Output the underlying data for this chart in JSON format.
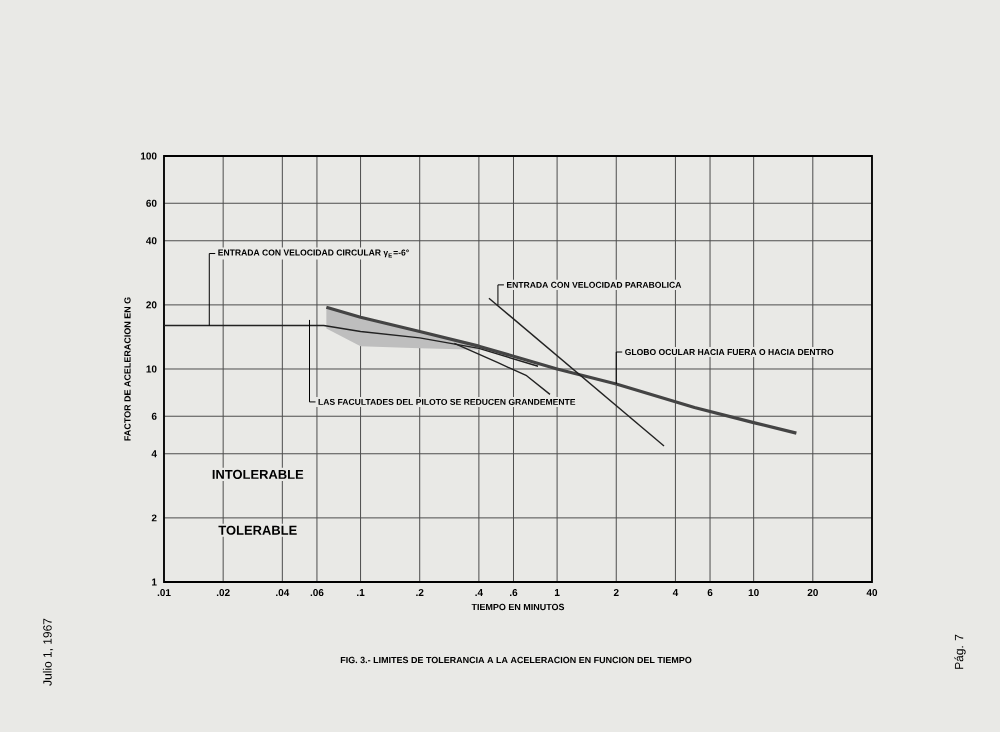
{
  "chart_data": {
    "type": "line",
    "title": "FIG. 3.- LIMITES DE TOLERANCIA A LA ACELERACION EN FUNCION DEL TIEMPO",
    "xlabel": "TIEMPO EN MINUTOS",
    "ylabel": "FACTOR DE ACELERACION EN G",
    "log": "xy",
    "grid": true,
    "marker": "none",
    "line_style": "solid",
    "xlim": [
      0.01,
      40
    ],
    "ylim": [
      1,
      100
    ],
    "xticks": [
      {
        "value": 0.01,
        "label": ".01"
      },
      {
        "value": 0.02,
        "label": ".02"
      },
      {
        "value": 0.04,
        "label": ".04"
      },
      {
        "value": 0.06,
        "label": ".06"
      },
      {
        "value": 0.1,
        "label": ".1"
      },
      {
        "value": 0.2,
        "label": ".2"
      },
      {
        "value": 0.4,
        "label": ".4"
      },
      {
        "value": 0.6,
        "label": ".6"
      },
      1,
      2,
      4,
      6,
      10,
      20,
      40
    ],
    "yticks": [
      1,
      2,
      4,
      6,
      10,
      20,
      40,
      60,
      100
    ],
    "series": [
      {
        "color": "#444444",
        "x": [
          0.067,
          0.1,
          0.2,
          0.4,
          1,
          2,
          5,
          10,
          16.5
        ],
        "values": [
          19.5,
          17.5,
          15,
          12.8,
          10,
          8.5,
          6.6,
          5.6,
          5
        ],
        "lower": [
          15.5,
          12.8,
          12.5,
          12.3,
          null,
          null,
          null,
          null,
          null
        ],
        "upper": [
          19.5,
          17.5,
          15,
          12.8,
          null,
          null,
          null,
          null,
          null
        ]
      },
      {
        "color": "#222222",
        "x": [
          0.01,
          0.065,
          0.1,
          0.2,
          0.4,
          0.8
        ],
        "values": [
          16,
          16,
          15,
          14,
          12.5,
          10.3
        ]
      },
      {
        "color": "#222222",
        "x": [
          0.3,
          0.5,
          0.7,
          0.92
        ],
        "values": [
          13.2,
          10.7,
          9.3,
          7.6
        ]
      },
      {
        "color": "#222222",
        "x": [
          0.45,
          3.5
        ],
        "values": [
          21.5,
          4.35
        ]
      }
    ],
    "annotations": [
      {
        "text": "ENTRADA CON VELOCIDAD CIRCULAR γ$_{E}$=-6°",
        "x": 0.017,
        "y": 16
      },
      {
        "text": "ENTRADA CON VELOCIDAD PARABOLICA",
        "x": 0.5,
        "y": 20
      },
      {
        "text": "GLOBO OCULAR HACIA FUERA O HACIA DENTRO",
        "x": 2,
        "y": 8.5
      },
      {
        "text": "LAS FACULTADES DEL PILOTO SE REDUCEN GRANDEMENTE",
        "x": 0.055,
        "y": 17
      },
      "INTOLERABLE",
      "TOLERABLE",
      "Julio 1, 1967",
      "Pág. 7"
    ]
  }
}
